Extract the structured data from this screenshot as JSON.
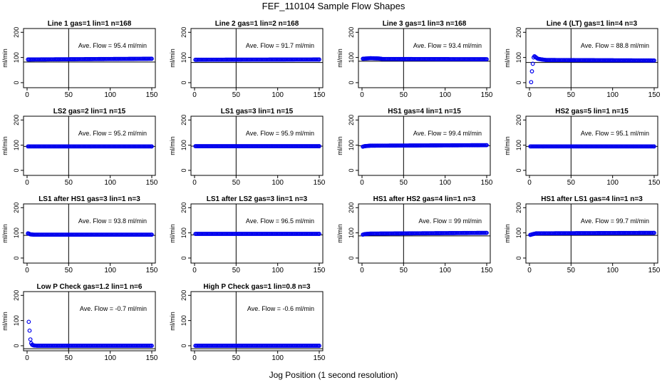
{
  "figure": {
    "title": "FEF_110104  Sample Flow Shapes",
    "xlabel": "Jog Position (1 second resolution)"
  },
  "colors": {
    "points": "#0000ee",
    "axes": "#000000",
    "background": "#ffffff"
  },
  "chart_data": [
    {
      "type": "scatter",
      "title": "Line 1 gas=1 lin=1 n=168",
      "ylabel": "ml/min",
      "annotation": "Ave. Flow =  95.4  ml/min",
      "xlim": [
        0,
        150
      ],
      "ylim": [
        -20,
        215
      ],
      "xticks": [
        0,
        50,
        100,
        150
      ],
      "yticks": [
        0,
        100,
        200
      ],
      "hline": 82,
      "vline": 50,
      "series": [
        {
          "x": [
            1,
            150
          ],
          "y": [
            92,
            95
          ]
        }
      ]
    },
    {
      "type": "scatter",
      "title": "Line 2 gas=1 lin=2 n=168",
      "ylabel": "ml/min",
      "annotation": "Ave. Flow =  91.7  ml/min",
      "xlim": [
        0,
        150
      ],
      "ylim": [
        -20,
        215
      ],
      "xticks": [
        0,
        50,
        100,
        150
      ],
      "yticks": [
        0,
        100,
        200
      ],
      "hline": 80,
      "vline": 50,
      "series": [
        {
          "x": [
            1,
            150
          ],
          "y": [
            91,
            92
          ]
        }
      ]
    },
    {
      "type": "scatter",
      "title": "Line 3 gas=1 lin=3 n=168",
      "ylabel": "ml/min",
      "annotation": "Ave. Flow =  93.4  ml/min",
      "xlim": [
        0,
        150
      ],
      "ylim": [
        -20,
        215
      ],
      "xticks": [
        0,
        50,
        100,
        150
      ],
      "yticks": [
        0,
        100,
        200
      ],
      "hline": 85,
      "vline": 50,
      "series": [
        {
          "x": [
            1,
            10,
            20,
            25,
            150
          ],
          "y": [
            95,
            97,
            96,
            94,
            93
          ]
        }
      ]
    },
    {
      "type": "scatter",
      "title": "Line 4 (LT) gas=1 lin=4 n=3",
      "ylabel": "ml/min",
      "annotation": "Ave. Flow =  88.8  ml/min",
      "xlim": [
        0,
        150
      ],
      "ylim": [
        -20,
        215
      ],
      "xticks": [
        0,
        50,
        100,
        150
      ],
      "yticks": [
        0,
        100,
        200
      ],
      "hline": 80,
      "vline": 50,
      "series": [
        {
          "x": [
            2,
            3,
            4,
            5,
            6,
            8,
            10,
            15,
            20,
            150
          ],
          "y": [
            2,
            45,
            75,
            100,
            105,
            100,
            95,
            92,
            90,
            88
          ]
        }
      ]
    },
    {
      "type": "scatter",
      "title": "LS2 gas=2 lin=1 n=15",
      "ylabel": "ml/min",
      "annotation": "Ave. Flow =  95.2  ml/min",
      "xlim": [
        0,
        150
      ],
      "ylim": [
        -20,
        215
      ],
      "xticks": [
        0,
        50,
        100,
        150
      ],
      "yticks": [
        0,
        100,
        200
      ],
      "hline": 95,
      "vline": 50,
      "series": [
        {
          "x": [
            1,
            150
          ],
          "y": [
            95,
            95
          ]
        }
      ]
    },
    {
      "type": "scatter",
      "title": "LS1 gas=3 lin=1 n=15",
      "ylabel": "ml/min",
      "annotation": "Ave. Flow =  95.9  ml/min",
      "xlim": [
        0,
        150
      ],
      "ylim": [
        -20,
        215
      ],
      "xticks": [
        0,
        50,
        100,
        150
      ],
      "yticks": [
        0,
        100,
        200
      ],
      "hline": 96,
      "vline": 50,
      "series": [
        {
          "x": [
            1,
            150
          ],
          "y": [
            96,
            96
          ]
        }
      ]
    },
    {
      "type": "scatter",
      "title": "HS1 gas=4 lin=1 n=15",
      "ylabel": "ml/min",
      "annotation": "Ave. Flow =  99.4  ml/min",
      "xlim": [
        0,
        150
      ],
      "ylim": [
        -20,
        215
      ],
      "xticks": [
        0,
        50,
        100,
        150
      ],
      "yticks": [
        0,
        100,
        200
      ],
      "hline": 98,
      "vline": 50,
      "series": [
        {
          "x": [
            1,
            3,
            10,
            150
          ],
          "y": [
            94,
            96,
            98,
            100
          ]
        }
      ]
    },
    {
      "type": "scatter",
      "title": "HS2 gas=5 lin=1 n=15",
      "ylabel": "ml/min",
      "annotation": "Ave. Flow =  95.1  ml/min",
      "xlim": [
        0,
        150
      ],
      "ylim": [
        -20,
        215
      ],
      "xticks": [
        0,
        50,
        100,
        150
      ],
      "yticks": [
        0,
        100,
        200
      ],
      "hline": 95,
      "vline": 50,
      "series": [
        {
          "x": [
            1,
            150
          ],
          "y": [
            95,
            95
          ]
        }
      ]
    },
    {
      "type": "scatter",
      "title": "LS1 after HS1 gas=3 lin=1 n=3",
      "ylabel": "ml/min",
      "annotation": "Ave. Flow =  93.8  ml/min",
      "xlim": [
        0,
        150
      ],
      "ylim": [
        -20,
        215
      ],
      "xticks": [
        0,
        50,
        100,
        150
      ],
      "yticks": [
        0,
        100,
        200
      ],
      "hline": 90,
      "vline": 50,
      "series": [
        {
          "x": [
            1,
            2,
            4,
            8,
            150
          ],
          "y": [
            98,
            97,
            94,
            93,
            93
          ]
        }
      ]
    },
    {
      "type": "scatter",
      "title": "LS1 after LS2 gas=3 lin=1 n=3",
      "ylabel": "ml/min",
      "annotation": "Ave. Flow =  96.5  ml/min",
      "xlim": [
        0,
        150
      ],
      "ylim": [
        -20,
        215
      ],
      "xticks": [
        0,
        50,
        100,
        150
      ],
      "yticks": [
        0,
        100,
        200
      ],
      "hline": 92,
      "vline": 50,
      "series": [
        {
          "x": [
            1,
            150
          ],
          "y": [
            96,
            96
          ]
        }
      ]
    },
    {
      "type": "scatter",
      "title": "HS1 after HS2 gas=4 lin=1 n=3",
      "ylabel": "ml/min",
      "annotation": "Ave. Flow =  99  ml/min",
      "xlim": [
        0,
        150
      ],
      "ylim": [
        -20,
        215
      ],
      "xticks": [
        0,
        50,
        100,
        150
      ],
      "yticks": [
        0,
        100,
        200
      ],
      "hline": 88,
      "vline": 50,
      "series": [
        {
          "x": [
            1,
            3,
            10,
            150
          ],
          "y": [
            93,
            95,
            97,
            100
          ]
        }
      ]
    },
    {
      "type": "scatter",
      "title": "HS1 after LS1 gas=4 lin=1 n=3",
      "ylabel": "ml/min",
      "annotation": "Ave. Flow =  99.7  ml/min",
      "xlim": [
        0,
        150
      ],
      "ylim": [
        -20,
        215
      ],
      "xticks": [
        0,
        50,
        100,
        150
      ],
      "yticks": [
        0,
        100,
        200
      ],
      "hline": 90,
      "vline": 50,
      "series": [
        {
          "x": [
            1,
            3,
            8,
            150
          ],
          "y": [
            92,
            94,
            98,
            100
          ]
        }
      ]
    },
    {
      "type": "scatter",
      "title": "Low P Check gas=1.2 lin=1 n=6",
      "ylabel": "ml/min",
      "annotation": "Ave. Flow =  -0.7  ml/min",
      "xlim": [
        0,
        150
      ],
      "ylim": [
        -20,
        215
      ],
      "xticks": [
        0,
        50,
        100,
        150
      ],
      "yticks": [
        0,
        100,
        200
      ],
      "hline": -12,
      "vline": 50,
      "series": [
        {
          "x": [
            2,
            3,
            4,
            5,
            6,
            8,
            12,
            150
          ],
          "y": [
            95,
            60,
            25,
            10,
            4,
            1,
            0,
            0
          ]
        }
      ]
    },
    {
      "type": "scatter",
      "title": "High P Check gas=1 lin=0.8 n=3",
      "ylabel": "ml/min",
      "annotation": "Ave. Flow =  -0.6  ml/min",
      "xlim": [
        0,
        150
      ],
      "ylim": [
        -20,
        215
      ],
      "xticks": [
        0,
        50,
        100,
        150
      ],
      "yticks": [
        0,
        100,
        200
      ],
      "hline": -12,
      "vline": 50,
      "series": [
        {
          "x": [
            1,
            150
          ],
          "y": [
            0,
            0
          ]
        }
      ]
    }
  ]
}
